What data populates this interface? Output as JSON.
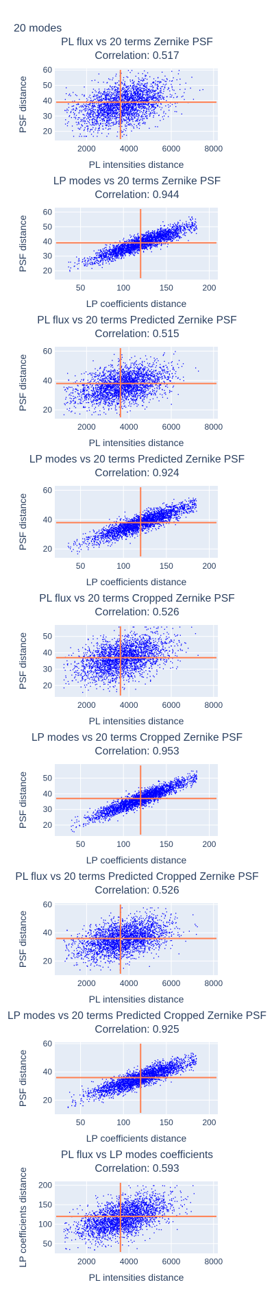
{
  "page_title": "20 modes",
  "chart_data": [
    {
      "type": "scatter",
      "title": "PL flux vs 20 terms Zernike PSF",
      "subtitle": "Correlation: 0.517",
      "xlabel": "PL intensities distance",
      "ylabel": "PSF distance",
      "xlim": [
        500,
        8200
      ],
      "ylim": [
        14,
        61
      ],
      "xticks": [
        2000,
        4000,
        6000,
        8000
      ],
      "yticks": [
        20,
        30,
        40,
        50,
        60
      ],
      "mean_x": 3600,
      "mean_y": 39,
      "correlation": 0.517,
      "marker_color": "#0000ff",
      "crosshair_color": "#ff7f50",
      "cloud": {
        "x_center": 3700,
        "x_spread": 1050,
        "x_min": 900,
        "x_max": 7500,
        "y_center": 38,
        "y_spread": 7,
        "slope": 0.0028,
        "y_min": 17,
        "y_max": 60
      }
    },
    {
      "type": "scatter",
      "title": "LP modes vs 20 terms Zernike PSF",
      "subtitle": "Correlation: 0.944",
      "xlabel": "LP coefficients distance",
      "ylabel": "PSF distance",
      "xlim": [
        20,
        210
      ],
      "ylim": [
        14,
        63
      ],
      "xticks": [
        50,
        100,
        150,
        200
      ],
      "yticks": [
        20,
        30,
        40,
        50,
        60
      ],
      "mean_x": 120,
      "mean_y": 39,
      "correlation": 0.944,
      "marker_color": "#0000ff",
      "crosshair_color": "#ff7f50",
      "cloud": {
        "x_center": 120,
        "x_spread": 28,
        "x_min": 35,
        "x_max": 185,
        "y_center": 39,
        "y_spread": 2.6,
        "slope": 0.2,
        "y_min": 17,
        "y_max": 57
      }
    },
    {
      "type": "scatter",
      "title": "PL flux vs 20 terms Predicted Zernike PSF",
      "subtitle": "Correlation: 0.515",
      "xlabel": "PL intensities distance",
      "ylabel": "PSF distance",
      "xlim": [
        500,
        8200
      ],
      "ylim": [
        14,
        63
      ],
      "xticks": [
        2000,
        4000,
        6000,
        8000
      ],
      "yticks": [
        20,
        40,
        60
      ],
      "mean_x": 3600,
      "mean_y": 38,
      "correlation": 0.515,
      "marker_color": "#0000ff",
      "crosshair_color": "#ff7f50",
      "cloud": {
        "x_center": 3700,
        "x_spread": 1050,
        "x_min": 900,
        "x_max": 7500,
        "y_center": 37,
        "y_spread": 6.5,
        "slope": 0.0028,
        "y_min": 17,
        "y_max": 60
      }
    },
    {
      "type": "scatter",
      "title": "LP modes vs 20 terms Predicted Zernike PSF",
      "subtitle": "Correlation: 0.924",
      "xlabel": "LP coefficients distance",
      "ylabel": "PSF distance",
      "xlim": [
        20,
        210
      ],
      "ylim": [
        14,
        63
      ],
      "xticks": [
        50,
        100,
        150,
        200
      ],
      "yticks": [
        20,
        40,
        60
      ],
      "mean_x": 120,
      "mean_y": 38,
      "correlation": 0.924,
      "marker_color": "#0000ff",
      "crosshair_color": "#ff7f50",
      "cloud": {
        "x_center": 120,
        "x_spread": 28,
        "x_min": 35,
        "x_max": 185,
        "y_center": 38,
        "y_spread": 3,
        "slope": 0.2,
        "y_min": 17,
        "y_max": 58
      }
    },
    {
      "type": "scatter",
      "title": "PL flux vs 20 terms Cropped Zernike PSF",
      "subtitle": "Correlation: 0.526",
      "xlabel": "PL intensities distance",
      "ylabel": "PSF distance",
      "xlim": [
        500,
        8200
      ],
      "ylim": [
        13,
        57
      ],
      "xticks": [
        2000,
        4000,
        6000,
        8000
      ],
      "yticks": [
        20,
        30,
        40,
        50
      ],
      "mean_x": 3600,
      "mean_y": 37,
      "correlation": 0.526,
      "marker_color": "#0000ff",
      "crosshair_color": "#ff7f50",
      "cloud": {
        "x_center": 3700,
        "x_spread": 1050,
        "x_min": 900,
        "x_max": 7500,
        "y_center": 37,
        "y_spread": 6.3,
        "slope": 0.0028,
        "y_min": 16,
        "y_max": 56
      }
    },
    {
      "type": "scatter",
      "title": "LP modes vs 20 terms Cropped Zernike PSF",
      "subtitle": "Correlation: 0.953",
      "xlabel": "LP coefficients distance",
      "ylabel": "PSF distance",
      "xlim": [
        20,
        210
      ],
      "ylim": [
        13,
        59
      ],
      "xticks": [
        50,
        100,
        150,
        200
      ],
      "yticks": [
        20,
        30,
        40,
        50
      ],
      "mean_x": 120,
      "mean_y": 37,
      "correlation": 0.953,
      "marker_color": "#0000ff",
      "crosshair_color": "#ff7f50",
      "cloud": {
        "x_center": 120,
        "x_spread": 28,
        "x_min": 35,
        "x_max": 185,
        "y_center": 37,
        "y_spread": 2.3,
        "slope": 0.21,
        "y_min": 16,
        "y_max": 56
      }
    },
    {
      "type": "scatter",
      "title": "PL flux vs 20 terms Predicted Cropped Zernike PSF",
      "subtitle": "Correlation: 0.526",
      "xlabel": "PL intensities distance",
      "ylabel": "PSF distance",
      "xlim": [
        500,
        8200
      ],
      "ylim": [
        10,
        61
      ],
      "xticks": [
        2000,
        4000,
        6000,
        8000
      ],
      "yticks": [
        20,
        40,
        60
      ],
      "mean_x": 3600,
      "mean_y": 36,
      "correlation": 0.526,
      "marker_color": "#0000ff",
      "crosshair_color": "#ff7f50",
      "cloud": {
        "x_center": 3700,
        "x_spread": 1050,
        "x_min": 900,
        "x_max": 7500,
        "y_center": 36,
        "y_spread": 6.5,
        "slope": 0.0028,
        "y_min": 14,
        "y_max": 58
      }
    },
    {
      "type": "scatter",
      "title": "LP modes vs 20 terms Predicted Cropped Zernike PSF",
      "subtitle": "Correlation: 0.925",
      "xlabel": "LP coefficients distance",
      "ylabel": "PSF distance",
      "xlim": [
        20,
        210
      ],
      "ylim": [
        10,
        61
      ],
      "xticks": [
        50,
        100,
        150,
        200
      ],
      "yticks": [
        20,
        40,
        60
      ],
      "mean_x": 120,
      "mean_y": 36,
      "correlation": 0.925,
      "marker_color": "#0000ff",
      "crosshair_color": "#ff7f50",
      "cloud": {
        "x_center": 120,
        "x_spread": 28,
        "x_min": 35,
        "x_max": 185,
        "y_center": 36,
        "y_spread": 3,
        "slope": 0.2,
        "y_min": 15,
        "y_max": 57
      }
    },
    {
      "type": "scatter",
      "title": "PL flux vs LP modes coefficients",
      "subtitle": "Correlation: 0.593",
      "xlabel": "PL intensities distance",
      "ylabel": "LP coefficients distance",
      "xlim": [
        500,
        8200
      ],
      "ylim": [
        25,
        210
      ],
      "xticks": [
        2000,
        4000,
        6000,
        8000
      ],
      "yticks": [
        50,
        100,
        150,
        200
      ],
      "mean_x": 3600,
      "mean_y": 120,
      "correlation": 0.593,
      "marker_color": "#0000ff",
      "crosshair_color": "#ff7f50",
      "cloud": {
        "x_center": 3700,
        "x_spread": 1050,
        "x_min": 900,
        "x_max": 7500,
        "y_center": 118,
        "y_spread": 24,
        "slope": 0.014,
        "y_min": 35,
        "y_max": 200
      }
    }
  ]
}
